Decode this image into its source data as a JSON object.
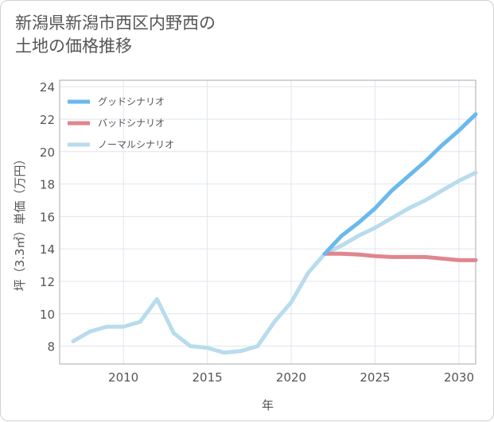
{
  "title": {
    "line1": "新潟県新潟市西区内野西の",
    "line2": "土地の価格推移"
  },
  "chart_data": {
    "type": "line",
    "xlabel": "年",
    "ylabel": "坪（3.3㎡）単価（万円）",
    "xlim": [
      2006.2,
      2031
    ],
    "ylim": [
      6.9,
      24.4
    ],
    "xticks": [
      2010,
      2015,
      2020,
      2025,
      2030
    ],
    "yticks": [
      8,
      10,
      12,
      14,
      16,
      18,
      20,
      22,
      24
    ],
    "grid": true,
    "legend_position": "top-left",
    "series": [
      {
        "name": "グッドシナリオ",
        "color": "#6ab9ec",
        "x": [
          2022,
          2023,
          2024,
          2025,
          2026,
          2027,
          2028,
          2029,
          2030,
          2031
        ],
        "y": [
          13.7,
          14.8,
          15.6,
          16.5,
          17.6,
          18.5,
          19.4,
          20.4,
          21.3,
          22.3
        ]
      },
      {
        "name": "バッドシナリオ",
        "color": "#e0868e",
        "x": [
          2022,
          2023,
          2024,
          2025,
          2026,
          2027,
          2028,
          2029,
          2030,
          2031
        ],
        "y": [
          13.7,
          13.7,
          13.65,
          13.55,
          13.5,
          13.5,
          13.5,
          13.4,
          13.3,
          13.3
        ]
      },
      {
        "name": "ノーマルシナリオ",
        "color": "#b8dcec",
        "x": [
          2007,
          2008,
          2009,
          2010,
          2011,
          2012,
          2013,
          2014,
          2015,
          2016,
          2017,
          2018,
          2019,
          2020,
          2021,
          2022,
          2023,
          2024,
          2025,
          2026,
          2027,
          2028,
          2029,
          2030,
          2031
        ],
        "y": [
          8.3,
          8.9,
          9.2,
          9.2,
          9.5,
          10.9,
          8.8,
          8.0,
          7.9,
          7.6,
          7.7,
          8.0,
          9.5,
          10.7,
          12.5,
          13.7,
          14.2,
          14.8,
          15.3,
          15.9,
          16.5,
          17.0,
          17.6,
          18.2,
          18.7
        ]
      }
    ]
  }
}
